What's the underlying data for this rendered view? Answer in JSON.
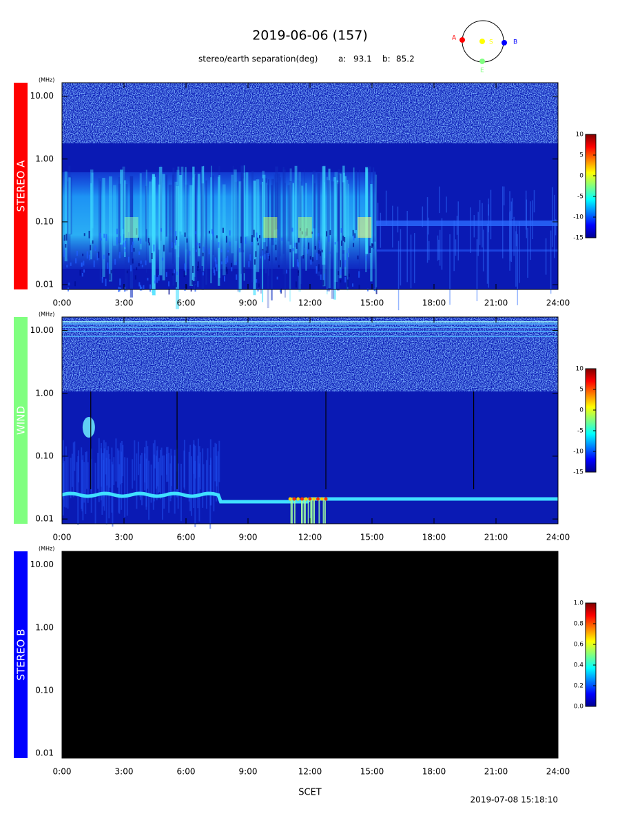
{
  "header": {
    "title": "2019-06-06 (157)",
    "separation": {
      "label": "stereo/earth separation(deg)",
      "a_label": "a:",
      "a": 93.1,
      "b_label": "b:",
      "b": 85.2
    }
  },
  "orbit": {
    "labels": [
      "A",
      "S",
      "B",
      "E"
    ]
  },
  "panels": [
    {
      "name": "STEREO A",
      "color": "#ff0000",
      "unit": "(MHz)",
      "log_y": true,
      "ylim": [
        0.0084,
        16.4
      ],
      "yticks": [
        {
          "value": 0.01,
          "label": "0.01"
        },
        {
          "value": 0.1,
          "label": "0.10"
        },
        {
          "value": 1,
          "label": "1.00"
        },
        {
          "value": 10,
          "label": "10.00"
        }
      ],
      "xlim": [
        0,
        24
      ],
      "xticks": [
        {
          "value": 0,
          "label": "0:00"
        },
        {
          "value": 3,
          "label": "3:00"
        },
        {
          "value": 6,
          "label": "6:00"
        },
        {
          "value": 9,
          "label": "9:00"
        },
        {
          "value": 12,
          "label": "12:00"
        },
        {
          "value": 15,
          "label": "15:00"
        },
        {
          "value": 18,
          "label": "18:00"
        },
        {
          "value": 21,
          "label": "21:00"
        },
        {
          "value": 24,
          "label": "24:00"
        }
      ],
      "colorbar": {
        "lim": [
          -15,
          10
        ],
        "ticks": [
          10,
          5,
          0,
          -5,
          -10,
          -15
        ]
      }
    },
    {
      "name": "WIND",
      "color": "#80ff80",
      "unit": "(MHz)",
      "log_y": true,
      "ylim": [
        0.0084,
        16.4
      ],
      "yticks": [
        {
          "value": 0.01,
          "label": "0.01"
        },
        {
          "value": 0.1,
          "label": "0.10"
        },
        {
          "value": 1,
          "label": "1.00"
        },
        {
          "value": 10,
          "label": "10.00"
        }
      ],
      "xlim": [
        0,
        24
      ],
      "xticks": [
        {
          "value": 0,
          "label": "0:00"
        },
        {
          "value": 3,
          "label": "3:00"
        },
        {
          "value": 6,
          "label": "6:00"
        },
        {
          "value": 9,
          "label": "9:00"
        },
        {
          "value": 12,
          "label": "12:00"
        },
        {
          "value": 15,
          "label": "15:00"
        },
        {
          "value": 18,
          "label": "18:00"
        },
        {
          "value": 21,
          "label": "21:00"
        },
        {
          "value": 24,
          "label": "24:00"
        }
      ],
      "colorbar": {
        "lim": [
          -15,
          10
        ],
        "ticks": [
          10,
          5,
          0,
          -5,
          -10,
          -15
        ]
      }
    },
    {
      "name": "STEREO B",
      "color": "#0000ff",
      "unit": "(MHz)",
      "log_y": true,
      "ylim": [
        0.0084,
        16.4
      ],
      "yticks": [
        {
          "value": 0.01,
          "label": "0.01"
        },
        {
          "value": 0.1,
          "label": "0.10"
        },
        {
          "value": 1,
          "label": "1.00"
        },
        {
          "value": 10,
          "label": "10.00"
        }
      ],
      "xlim": [
        0,
        24
      ],
      "xticks": [
        {
          "value": 0,
          "label": "0:00"
        },
        {
          "value": 3,
          "label": "3:00"
        },
        {
          "value": 6,
          "label": "6:00"
        },
        {
          "value": 9,
          "label": "9:00"
        },
        {
          "value": 12,
          "label": "12:00"
        },
        {
          "value": 15,
          "label": "15:00"
        },
        {
          "value": 18,
          "label": "18:00"
        },
        {
          "value": 21,
          "label": "21:00"
        },
        {
          "value": 24,
          "label": "24:00"
        }
      ],
      "colorbar": {
        "lim": [
          0,
          1
        ],
        "ticks": [
          {
            "value": 1,
            "label": "1.0"
          },
          0.8,
          0.6,
          0.4,
          0.2,
          {
            "value": 0,
            "label": "0.0"
          }
        ]
      }
    }
  ],
  "footer": {
    "xlabel": "SCET",
    "timestamp": "2019-07-08 15:18:10"
  }
}
